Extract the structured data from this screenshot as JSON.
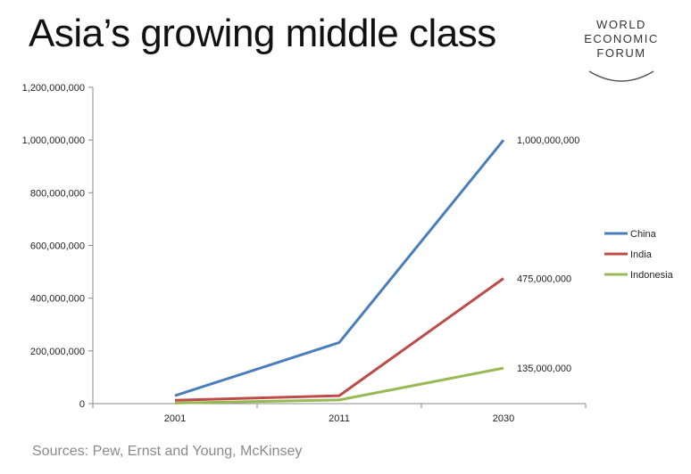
{
  "title": "Asia’s growing middle class",
  "logo": {
    "lines": [
      "WORLD",
      "ECONOMIC",
      "FORUM"
    ]
  },
  "source": "Sources: Pew, Ernst and Young, McKinsey",
  "colors": {
    "China": "#4A7EBB",
    "India": "#BE4B48",
    "Indonesia": "#98B954",
    "axis": "#8a8a8a"
  },
  "chart_data": {
    "type": "line",
    "title": "Asia’s growing middle class",
    "categories": [
      "2001",
      "2011",
      "2030"
    ],
    "ylim": [
      0,
      1200000000
    ],
    "yticks": [
      0,
      200000000,
      400000000,
      600000000,
      800000000,
      1000000000,
      1200000000
    ],
    "ytick_labels": [
      "0",
      "200,000,000",
      "400,000,000",
      "600,000,000",
      "800,000,000",
      "1,000,000,000",
      "1,200,000,000"
    ],
    "grid": false,
    "legend_position": "right",
    "series": [
      {
        "name": "China",
        "values": [
          30000000,
          232000000,
          1000000000
        ],
        "end_label": "1,000,000,000"
      },
      {
        "name": "India",
        "values": [
          13000000,
          30000000,
          475000000
        ],
        "end_label": "475,000,000"
      },
      {
        "name": "Indonesia",
        "values": [
          2000000,
          14000000,
          135000000
        ],
        "end_label": "135,000,000"
      }
    ]
  }
}
